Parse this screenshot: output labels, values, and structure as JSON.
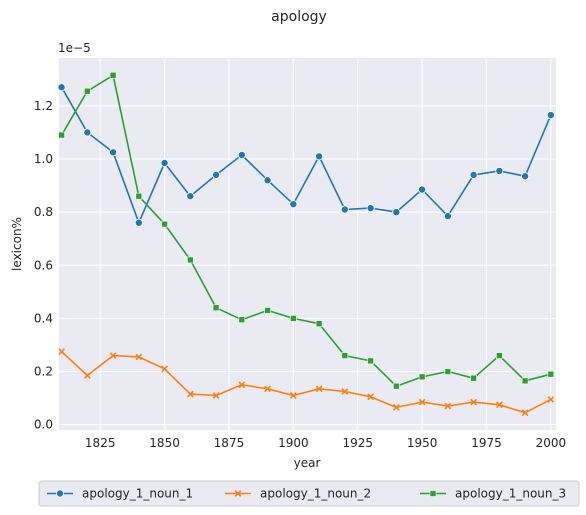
{
  "chart_data": {
    "type": "line",
    "title": "apology",
    "xlabel": "year",
    "ylabel": "lexicon%",
    "y_scale_label": "1e−5",
    "xlim": [
      1809,
      2002
    ],
    "ylim": [
      -0.02,
      1.38
    ],
    "x_ticks": [
      1825,
      1850,
      1875,
      1900,
      1925,
      1950,
      1975,
      2000
    ],
    "y_ticks": [
      0.0,
      0.2,
      0.4,
      0.6,
      0.8,
      1.0,
      1.2
    ],
    "y_tick_labels": [
      "0.0",
      "0.2",
      "0.4",
      "0.6",
      "0.8",
      "1.0",
      "1.2"
    ],
    "grid": true,
    "legend_position": "bottom",
    "x": [
      1810,
      1820,
      1830,
      1840,
      1850,
      1860,
      1870,
      1880,
      1890,
      1900,
      1910,
      1920,
      1930,
      1940,
      1950,
      1960,
      1970,
      1980,
      1990,
      2000
    ],
    "series": [
      {
        "name": "apology_1_noun_1",
        "color": "#1f77b4",
        "marker": "circle",
        "values": [
          1.27,
          1.1,
          1.025,
          0.76,
          0.985,
          0.86,
          0.94,
          1.015,
          0.92,
          0.83,
          1.01,
          0.81,
          0.815,
          0.8,
          0.885,
          0.785,
          0.94,
          0.955,
          0.935,
          1.165
        ]
      },
      {
        "name": "apology_1_noun_2",
        "color": "#ff7f0e",
        "marker": "x",
        "values": [
          0.275,
          0.185,
          0.26,
          0.255,
          0.21,
          0.115,
          0.11,
          0.15,
          0.135,
          0.11,
          0.135,
          0.125,
          0.105,
          0.065,
          0.085,
          0.07,
          0.085,
          0.075,
          0.045,
          0.095
        ]
      },
      {
        "name": "apology_1_noun_3",
        "color": "#2ca02c",
        "marker": "square",
        "values": [
          1.09,
          1.255,
          1.315,
          0.86,
          0.755,
          0.62,
          0.44,
          0.395,
          0.43,
          0.4,
          0.38,
          0.26,
          0.24,
          0.145,
          0.18,
          0.2,
          0.175,
          0.26,
          0.165,
          0.19
        ]
      }
    ]
  }
}
